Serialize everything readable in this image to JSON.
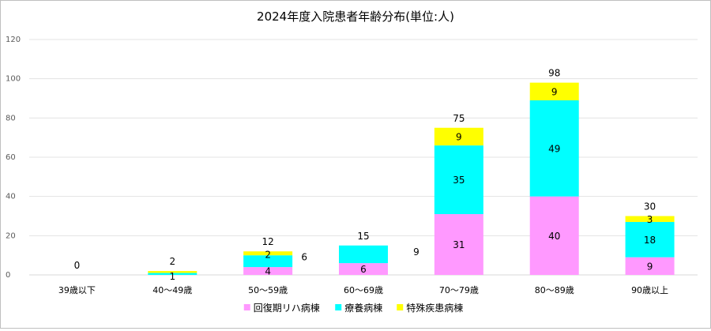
{
  "chart_data": {
    "type": "bar",
    "stacked": true,
    "title": "2024年度入院患者年齢分布(単位:人)",
    "xlabel": "",
    "ylabel": "",
    "ylim": [
      0,
      120
    ],
    "yticks": [
      0,
      20,
      40,
      60,
      80,
      100,
      120
    ],
    "grid": true,
    "legend_position": "bottom",
    "categories": [
      "39歳以下",
      "40〜49歳",
      "50〜59歳",
      "60〜69歳",
      "70〜79歳",
      "80〜89歳",
      "90歳以上"
    ],
    "series": [
      {
        "name": "回復期リハ病棟",
        "color": "#ff99ff",
        "values": [
          0,
          0,
          4,
          6,
          31,
          40,
          9
        ],
        "labels": [
          "",
          "",
          "4",
          "6",
          "31",
          "40",
          "9"
        ]
      },
      {
        "name": "療養病棟",
        "color": "#00ffff",
        "values": [
          0,
          1,
          6,
          9,
          35,
          49,
          18
        ],
        "labels": [
          "",
          "1",
          "6",
          "9",
          "35",
          "49",
          "18"
        ]
      },
      {
        "name": "特殊疾患病棟",
        "color": "#ffff00",
        "values": [
          0,
          1,
          2,
          0,
          9,
          9,
          3
        ],
        "labels": [
          "",
          "",
          "2",
          "",
          "9",
          "9",
          "3"
        ]
      }
    ],
    "totals": [
      0,
      2,
      12,
      15,
      75,
      98,
      30
    ]
  }
}
